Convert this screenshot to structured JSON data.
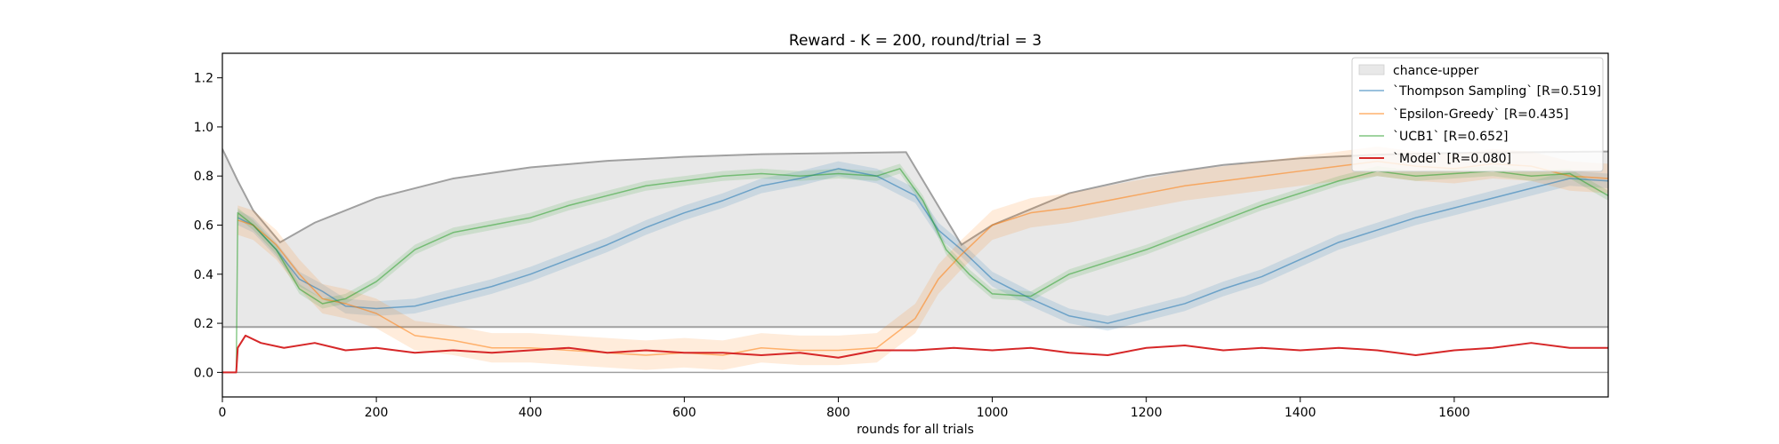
{
  "chart_data": {
    "type": "line",
    "title": "Reward - K = 200, round/trial = 3",
    "xlabel": "rounds for all trials",
    "ylabel": "",
    "xlim": [
      0,
      1800
    ],
    "ylim": [
      -0.1,
      1.3
    ],
    "xticks": [
      0,
      200,
      400,
      600,
      800,
      1000,
      1200,
      1400,
      1600
    ],
    "yticks": [
      0.0,
      0.2,
      0.4,
      0.6,
      0.8,
      1.0,
      1.2
    ],
    "ytick_labels": [
      "0.0",
      "0.2",
      "0.4",
      "0.6",
      "0.8",
      "1.0",
      "1.2"
    ],
    "legend_position": "top-right",
    "chance_upper": {
      "name": "chance-upper",
      "color": "#e8e8e8",
      "upper": [
        [
          0,
          0.91
        ],
        [
          20,
          0.78
        ],
        [
          40,
          0.66
        ],
        [
          75,
          0.53
        ],
        [
          120,
          0.61
        ],
        [
          200,
          0.71
        ],
        [
          300,
          0.79
        ],
        [
          400,
          0.835
        ],
        [
          500,
          0.862
        ],
        [
          600,
          0.878
        ],
        [
          700,
          0.889
        ],
        [
          888,
          0.897
        ],
        [
          960,
          0.52
        ],
        [
          1000,
          0.6
        ],
        [
          1100,
          0.73
        ],
        [
          1200,
          0.8
        ],
        [
          1300,
          0.845
        ],
        [
          1400,
          0.872
        ],
        [
          1500,
          0.887
        ],
        [
          1600,
          0.894
        ],
        [
          1700,
          0.897
        ],
        [
          1800,
          0.9
        ]
      ],
      "lower": [
        [
          0,
          0.185
        ],
        [
          1800,
          0.185
        ]
      ]
    },
    "series": [
      {
        "name": "`Thompson Sampling` [R=0.519]",
        "color": "#1f77b4",
        "points": [
          [
            20,
            0.63
          ],
          [
            40,
            0.6
          ],
          [
            70,
            0.5
          ],
          [
            100,
            0.38
          ],
          [
            130,
            0.33
          ],
          [
            160,
            0.27
          ],
          [
            200,
            0.26
          ],
          [
            250,
            0.27
          ],
          [
            300,
            0.31
          ],
          [
            350,
            0.35
          ],
          [
            400,
            0.4
          ],
          [
            450,
            0.46
          ],
          [
            500,
            0.52
          ],
          [
            550,
            0.59
          ],
          [
            600,
            0.65
          ],
          [
            650,
            0.7
          ],
          [
            700,
            0.76
          ],
          [
            750,
            0.79
          ],
          [
            800,
            0.83
          ],
          [
            850,
            0.8
          ],
          [
            900,
            0.72
          ],
          [
            930,
            0.58
          ],
          [
            960,
            0.5
          ],
          [
            1000,
            0.38
          ],
          [
            1050,
            0.3
          ],
          [
            1100,
            0.23
          ],
          [
            1150,
            0.2
          ],
          [
            1200,
            0.24
          ],
          [
            1250,
            0.28
          ],
          [
            1300,
            0.34
          ],
          [
            1350,
            0.39
          ],
          [
            1400,
            0.46
          ],
          [
            1450,
            0.53
          ],
          [
            1500,
            0.58
          ],
          [
            1550,
            0.63
          ],
          [
            1600,
            0.67
          ],
          [
            1650,
            0.71
          ],
          [
            1700,
            0.75
          ],
          [
            1750,
            0.79
          ],
          [
            1800,
            0.78
          ]
        ]
      },
      {
        "name": "`Epsilon-Greedy` [R=0.435]",
        "color": "#ff7f0e",
        "points": [
          [
            20,
            0.62
          ],
          [
            40,
            0.6
          ],
          [
            70,
            0.52
          ],
          [
            100,
            0.4
          ],
          [
            130,
            0.3
          ],
          [
            160,
            0.28
          ],
          [
            200,
            0.24
          ],
          [
            250,
            0.15
          ],
          [
            300,
            0.13
          ],
          [
            350,
            0.1
          ],
          [
            400,
            0.1
          ],
          [
            450,
            0.09
          ],
          [
            500,
            0.08
          ],
          [
            550,
            0.07
          ],
          [
            600,
            0.08
          ],
          [
            650,
            0.07
          ],
          [
            700,
            0.1
          ],
          [
            750,
            0.09
          ],
          [
            800,
            0.09
          ],
          [
            850,
            0.1
          ],
          [
            900,
            0.22
          ],
          [
            930,
            0.38
          ],
          [
            960,
            0.48
          ],
          [
            1000,
            0.6
          ],
          [
            1050,
            0.65
          ],
          [
            1100,
            0.67
          ],
          [
            1150,
            0.7
          ],
          [
            1200,
            0.73
          ],
          [
            1250,
            0.76
          ],
          [
            1300,
            0.78
          ],
          [
            1350,
            0.8
          ],
          [
            1400,
            0.82
          ],
          [
            1450,
            0.84
          ],
          [
            1500,
            0.86
          ],
          [
            1550,
            0.84
          ],
          [
            1600,
            0.83
          ],
          [
            1650,
            0.85
          ],
          [
            1700,
            0.84
          ],
          [
            1750,
            0.8
          ],
          [
            1800,
            0.79
          ]
        ]
      },
      {
        "name": "`UCB1` [R=0.652]",
        "color": "#2ca02c",
        "points": [
          [
            18,
            0.0
          ],
          [
            20,
            0.65
          ],
          [
            40,
            0.6
          ],
          [
            70,
            0.5
          ],
          [
            100,
            0.34
          ],
          [
            130,
            0.28
          ],
          [
            160,
            0.3
          ],
          [
            200,
            0.37
          ],
          [
            250,
            0.5
          ],
          [
            300,
            0.57
          ],
          [
            350,
            0.6
          ],
          [
            400,
            0.63
          ],
          [
            450,
            0.68
          ],
          [
            500,
            0.72
          ],
          [
            550,
            0.76
          ],
          [
            600,
            0.78
          ],
          [
            650,
            0.8
          ],
          [
            700,
            0.81
          ],
          [
            750,
            0.8
          ],
          [
            800,
            0.81
          ],
          [
            850,
            0.8
          ],
          [
            880,
            0.83
          ],
          [
            910,
            0.7
          ],
          [
            940,
            0.5
          ],
          [
            970,
            0.4
          ],
          [
            1000,
            0.32
          ],
          [
            1050,
            0.31
          ],
          [
            1100,
            0.4
          ],
          [
            1150,
            0.45
          ],
          [
            1200,
            0.5
          ],
          [
            1250,
            0.56
          ],
          [
            1300,
            0.62
          ],
          [
            1350,
            0.68
          ],
          [
            1400,
            0.73
          ],
          [
            1450,
            0.78
          ],
          [
            1500,
            0.82
          ],
          [
            1550,
            0.8
          ],
          [
            1600,
            0.81
          ],
          [
            1650,
            0.82
          ],
          [
            1700,
            0.8
          ],
          [
            1750,
            0.81
          ],
          [
            1800,
            0.72
          ]
        ]
      },
      {
        "name": "`Model` [R=0.080]",
        "color": "#d62728",
        "points": [
          [
            0,
            0.0
          ],
          [
            18,
            0.0
          ],
          [
            20,
            0.1
          ],
          [
            30,
            0.15
          ],
          [
            50,
            0.12
          ],
          [
            80,
            0.1
          ],
          [
            120,
            0.12
          ],
          [
            160,
            0.09
          ],
          [
            200,
            0.1
          ],
          [
            250,
            0.08
          ],
          [
            300,
            0.09
          ],
          [
            350,
            0.08
          ],
          [
            400,
            0.09
          ],
          [
            450,
            0.1
          ],
          [
            500,
            0.08
          ],
          [
            550,
            0.09
          ],
          [
            600,
            0.08
          ],
          [
            650,
            0.08
          ],
          [
            700,
            0.07
          ],
          [
            750,
            0.08
          ],
          [
            800,
            0.06
          ],
          [
            850,
            0.09
          ],
          [
            900,
            0.09
          ],
          [
            950,
            0.1
          ],
          [
            1000,
            0.09
          ],
          [
            1050,
            0.1
          ],
          [
            1100,
            0.08
          ],
          [
            1150,
            0.07
          ],
          [
            1200,
            0.1
          ],
          [
            1250,
            0.11
          ],
          [
            1300,
            0.09
          ],
          [
            1350,
            0.1
          ],
          [
            1400,
            0.09
          ],
          [
            1450,
            0.1
          ],
          [
            1500,
            0.09
          ],
          [
            1550,
            0.07
          ],
          [
            1600,
            0.09
          ],
          [
            1650,
            0.1
          ],
          [
            1700,
            0.12
          ],
          [
            1750,
            0.1
          ],
          [
            1800,
            0.1
          ]
        ]
      }
    ]
  }
}
